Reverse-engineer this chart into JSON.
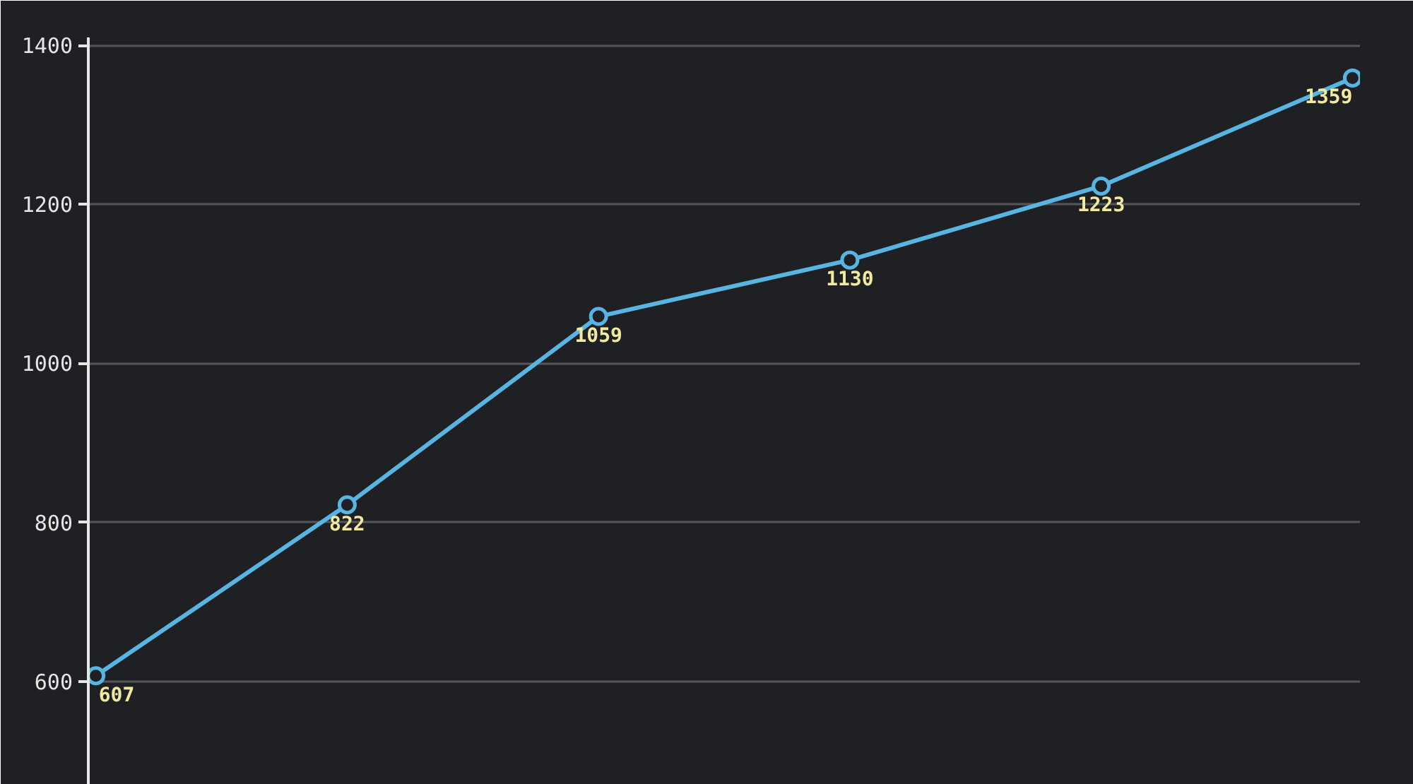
{
  "chart_data": {
    "type": "line",
    "categories": [
      null,
      null,
      null,
      null,
      null,
      null
    ],
    "series": [
      {
        "color": "#58b4e1",
        "values": [
          607,
          822,
          1059,
          1130,
          1223,
          1359
        ]
      }
    ],
    "ylim": [
      470,
      1410
    ],
    "yticks": [
      600,
      800,
      1000,
      1200,
      1400
    ],
    "grid": "y",
    "data_labels": true,
    "marker": "circle",
    "line_style": "solid",
    "tick_labels": "y"
  }
}
